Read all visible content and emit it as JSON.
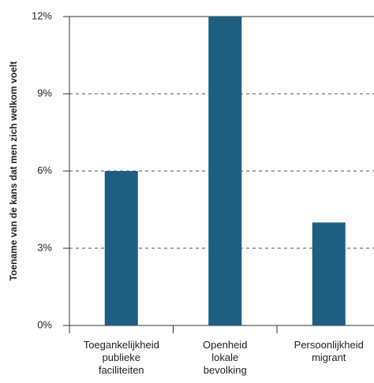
{
  "chart_data": {
    "type": "bar",
    "y_label": "Toename van de kans dat men zich welkom voelt",
    "categories": [
      [
        "Toegankelijkheid",
        "publieke",
        "faciliteiten"
      ],
      [
        "Openheid",
        "lokale",
        "bevolking"
      ],
      [
        "Persoonlijkheid",
        "migrant"
      ]
    ],
    "values": [
      6,
      12,
      4
    ],
    "color": "#1c5f80",
    "ylim": [
      0,
      12
    ],
    "yticks": [
      {
        "value": 0,
        "label": "0%"
      },
      {
        "value": 3,
        "label": "3%"
      },
      {
        "value": 6,
        "label": "6%"
      },
      {
        "value": 9,
        "label": "9%"
      },
      {
        "value": 12,
        "label": "12%"
      }
    ],
    "grid": true
  }
}
